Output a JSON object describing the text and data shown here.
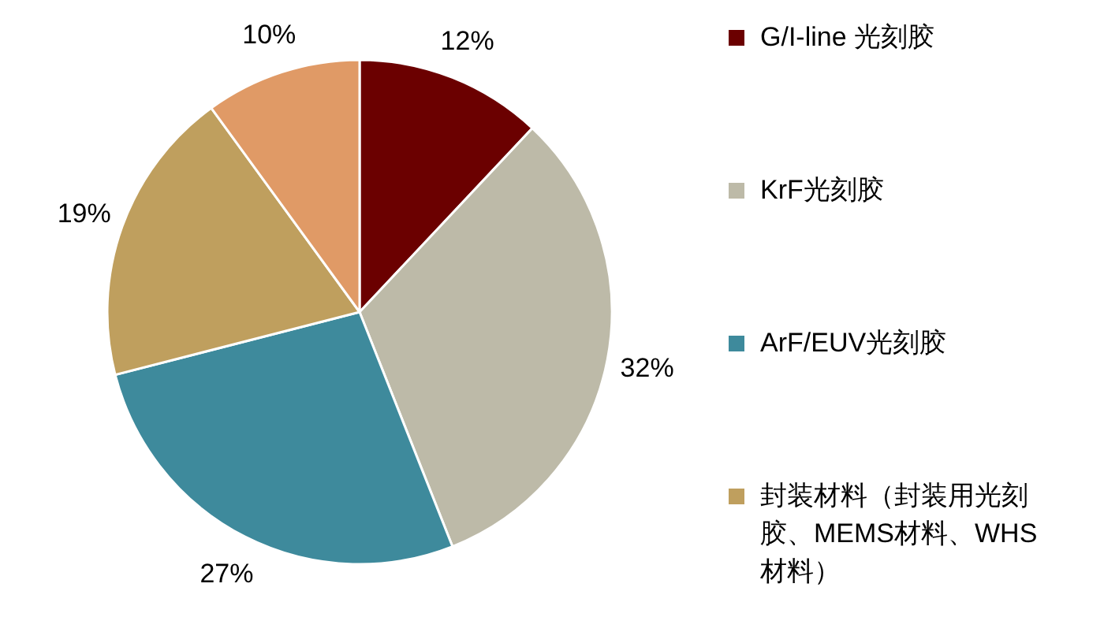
{
  "chart_data": {
    "type": "pie",
    "categories": [
      "G/I-line 光刻胶",
      "KrF光刻胶",
      "ArF/EUV光刻胶",
      "封装材料（封装用光刻胶、MEMS材料、WHS材料）",
      null
    ],
    "values": [
      12,
      32,
      27,
      19,
      10
    ],
    "value_labels": [
      "12%",
      "32%",
      "27%",
      "19%",
      "10%"
    ],
    "colors": [
      "#6b0000",
      "#bdbaa8",
      "#3e8a9c",
      "#bf9f5e",
      "#e09a66"
    ],
    "legend": "right"
  }
}
